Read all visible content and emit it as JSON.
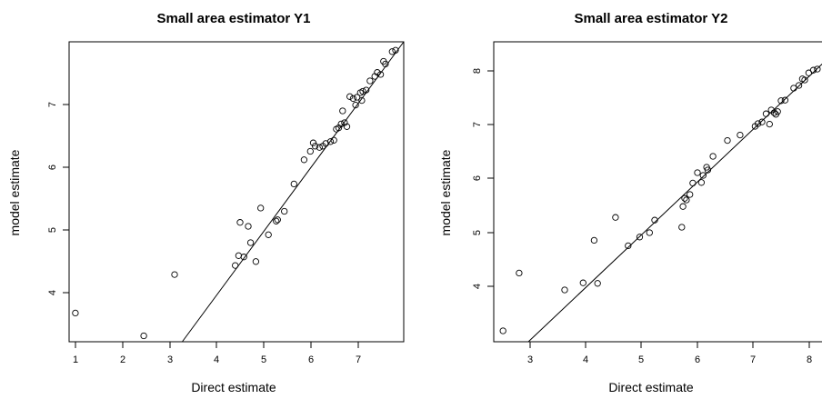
{
  "chart_data": [
    {
      "type": "scatter",
      "title": "Small area estimator Y1",
      "xlabel": "Direct estimate",
      "ylabel": "model estimate",
      "xlim": [
        0.95,
        7.9
      ],
      "ylim": [
        3.3,
        7.9
      ],
      "xticks": [
        "1",
        "2",
        "3",
        "4",
        "5",
        "6",
        "7"
      ],
      "yticks": [
        "4",
        "5",
        "6",
        "7"
      ],
      "reference_line": "y = x",
      "grid": false,
      "points": [
        {
          "x": 1.08,
          "y": 3.74
        },
        {
          "x": 2.5,
          "y": 3.39
        },
        {
          "x": 3.14,
          "y": 4.33
        },
        {
          "x": 4.4,
          "y": 4.47
        },
        {
          "x": 4.47,
          "y": 4.62
        },
        {
          "x": 4.5,
          "y": 5.13
        },
        {
          "x": 4.58,
          "y": 4.6
        },
        {
          "x": 4.67,
          "y": 5.07
        },
        {
          "x": 4.72,
          "y": 4.82
        },
        {
          "x": 4.83,
          "y": 4.53
        },
        {
          "x": 4.93,
          "y": 5.35
        },
        {
          "x": 5.09,
          "y": 4.94
        },
        {
          "x": 5.25,
          "y": 5.15
        },
        {
          "x": 5.28,
          "y": 5.17
        },
        {
          "x": 5.42,
          "y": 5.3
        },
        {
          "x": 5.62,
          "y": 5.72
        },
        {
          "x": 5.83,
          "y": 6.09
        },
        {
          "x": 5.96,
          "y": 6.22
        },
        {
          "x": 6.02,
          "y": 6.35
        },
        {
          "x": 6.06,
          "y": 6.3
        },
        {
          "x": 6.15,
          "y": 6.28
        },
        {
          "x": 6.22,
          "y": 6.3
        },
        {
          "x": 6.28,
          "y": 6.34
        },
        {
          "x": 6.38,
          "y": 6.37
        },
        {
          "x": 6.45,
          "y": 6.39
        },
        {
          "x": 6.5,
          "y": 6.56
        },
        {
          "x": 6.55,
          "y": 6.58
        },
        {
          "x": 6.6,
          "y": 6.64
        },
        {
          "x": 6.63,
          "y": 6.84
        },
        {
          "x": 6.67,
          "y": 6.66
        },
        {
          "x": 6.72,
          "y": 6.6
        },
        {
          "x": 6.78,
          "y": 7.06
        },
        {
          "x": 6.85,
          "y": 7.03
        },
        {
          "x": 6.9,
          "y": 6.93
        },
        {
          "x": 6.93,
          "y": 7.05
        },
        {
          "x": 7.0,
          "y": 7.12
        },
        {
          "x": 7.03,
          "y": 7.0
        },
        {
          "x": 7.05,
          "y": 7.14
        },
        {
          "x": 7.12,
          "y": 7.16
        },
        {
          "x": 7.2,
          "y": 7.3
        },
        {
          "x": 7.3,
          "y": 7.37
        },
        {
          "x": 7.35,
          "y": 7.43
        },
        {
          "x": 7.42,
          "y": 7.4
        },
        {
          "x": 7.48,
          "y": 7.6
        },
        {
          "x": 7.52,
          "y": 7.56
        },
        {
          "x": 7.66,
          "y": 7.75
        },
        {
          "x": 7.73,
          "y": 7.77
        }
      ]
    },
    {
      "type": "scatter",
      "title": "Small area estimator Y2",
      "xlabel": "Direct estimate",
      "ylabel": "model estimate",
      "xlim": [
        2.4,
        8.2
      ],
      "ylim": [
        3.0,
        8.5
      ],
      "xticks": [
        "3",
        "4",
        "5",
        "6",
        "7",
        "8"
      ],
      "yticks": [
        "4",
        "5",
        "6",
        "7",
        "8"
      ],
      "reference_line": "y = x",
      "grid": false,
      "points": [
        {
          "x": 2.56,
          "y": 3.2
        },
        {
          "x": 2.84,
          "y": 4.26
        },
        {
          "x": 3.63,
          "y": 3.95
        },
        {
          "x": 3.95,
          "y": 4.08
        },
        {
          "x": 4.14,
          "y": 4.86
        },
        {
          "x": 4.2,
          "y": 4.07
        },
        {
          "x": 4.51,
          "y": 5.28
        },
        {
          "x": 4.73,
          "y": 4.76
        },
        {
          "x": 4.93,
          "y": 4.92
        },
        {
          "x": 5.1,
          "y": 5.0
        },
        {
          "x": 5.19,
          "y": 5.23
        },
        {
          "x": 5.66,
          "y": 5.1
        },
        {
          "x": 5.68,
          "y": 5.48
        },
        {
          "x": 5.71,
          "y": 5.63
        },
        {
          "x": 5.74,
          "y": 5.6
        },
        {
          "x": 5.8,
          "y": 5.7
        },
        {
          "x": 5.85,
          "y": 5.91
        },
        {
          "x": 5.93,
          "y": 6.1
        },
        {
          "x": 6.0,
          "y": 5.92
        },
        {
          "x": 6.03,
          "y": 6.05
        },
        {
          "x": 6.09,
          "y": 6.2
        },
        {
          "x": 6.11,
          "y": 6.15
        },
        {
          "x": 6.2,
          "y": 6.4
        },
        {
          "x": 6.45,
          "y": 6.69
        },
        {
          "x": 6.67,
          "y": 6.79
        },
        {
          "x": 6.93,
          "y": 6.95
        },
        {
          "x": 6.98,
          "y": 7.0
        },
        {
          "x": 7.05,
          "y": 7.03
        },
        {
          "x": 7.12,
          "y": 7.18
        },
        {
          "x": 7.18,
          "y": 6.99
        },
        {
          "x": 7.21,
          "y": 7.25
        },
        {
          "x": 7.26,
          "y": 7.2
        },
        {
          "x": 7.29,
          "y": 7.17
        },
        {
          "x": 7.32,
          "y": 7.22
        },
        {
          "x": 7.38,
          "y": 7.42
        },
        {
          "x": 7.45,
          "y": 7.43
        },
        {
          "x": 7.6,
          "y": 7.65
        },
        {
          "x": 7.69,
          "y": 7.7
        },
        {
          "x": 7.75,
          "y": 7.82
        },
        {
          "x": 7.79,
          "y": 7.8
        },
        {
          "x": 7.86,
          "y": 7.93
        },
        {
          "x": 7.94,
          "y": 7.98
        },
        {
          "x": 8.01,
          "y": 8.0
        },
        {
          "x": 8.15,
          "y": 8.2
        }
      ]
    }
  ]
}
